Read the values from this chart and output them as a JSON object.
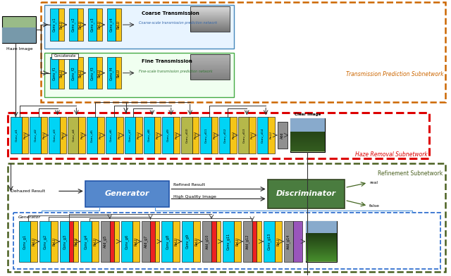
{
  "bg_color": "#ffffff",
  "section1_label": "Transmission Prediction Subnetwork",
  "section2_label": "Haze Removal Subnetwork",
  "section3_label": "Refinement Subnetwork",
  "coarse_net_label": "Coarse-scale transmission prediction network",
  "fine_net_label": "Fine-scale transmission prediction network",
  "generator_inner_label": "Generator",
  "cyan": "#00d4f5",
  "yellow": "#f5c518",
  "olive": "#b5b84a",
  "gray": "#909090",
  "dark_gray": "#707070",
  "red": "#ee2222",
  "purple": "#9955bb",
  "blue_gen": "#5588cc",
  "dark_green_disc": "#4a7c3f",
  "orange_border": "#cc6600",
  "red_border": "#dd0000",
  "dkgreen_border": "#4a6020",
  "blue_border": "#2266cc",
  "coarse_labels": [
    "Conv_c1",
    "Conv_c2",
    "Conv_c3",
    "Conv_c4"
  ],
  "fine_labels": [
    "Conv_f1",
    "Conv_f2",
    "Conv_f3",
    "Conv_f4"
  ],
  "rem_labels": [
    "Conv_d1",
    "Conv_d2",
    "Conv_d3",
    "Conv_d4",
    "Conv_d5",
    "Conv_d6",
    "Conv_d7",
    "Conv_d8",
    "Conv_d9",
    "Conv_d10",
    "Conv_d11",
    "Conv_d12",
    "Conv_d13",
    "Conv_d14"
  ],
  "rem_green_idx": [
    3,
    9,
    12
  ],
  "gen_labels": [
    "Conv_g1",
    "Conv_g2",
    "Conv_g3",
    "Conv_g4",
    "Add_g5",
    "Conv_g6",
    "Add_g7",
    "Conv_g8",
    "Conv_g9",
    "Add_g10",
    "Conv_g11",
    "Add_g12",
    "Conv_g13",
    "Add_g14"
  ],
  "gen_has_red": [
    false,
    false,
    true,
    false,
    true,
    false,
    true,
    false,
    false,
    true,
    false,
    true,
    false,
    false
  ],
  "gen_is_add": [
    false,
    false,
    false,
    false,
    true,
    false,
    true,
    false,
    false,
    true,
    false,
    true,
    false,
    true
  ]
}
